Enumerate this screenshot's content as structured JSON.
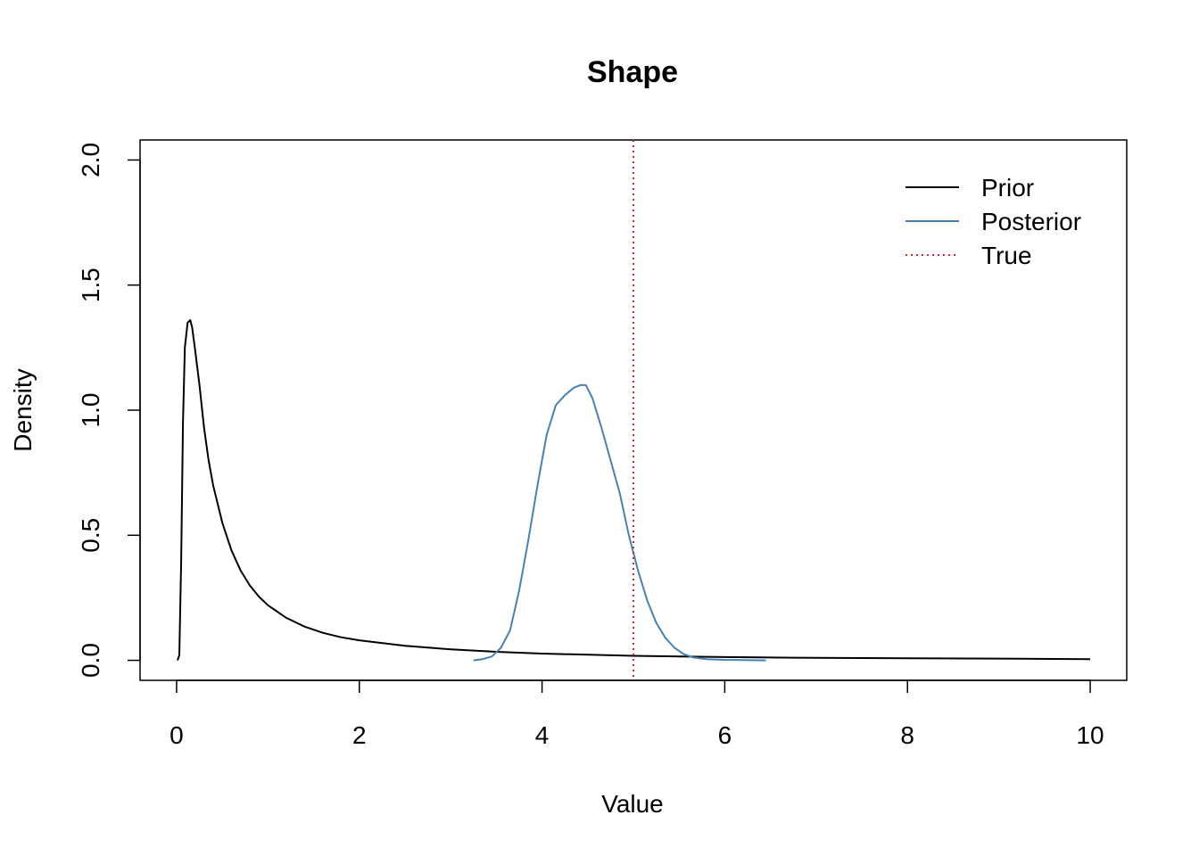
{
  "chart_data": {
    "type": "line",
    "title": "Shape",
    "xlabel": "Value",
    "ylabel": "Density",
    "xlim": [
      -0.4,
      10.4
    ],
    "ylim": [
      -0.08,
      2.08
    ],
    "xticks": [
      0,
      2,
      4,
      6,
      8,
      10
    ],
    "xtick_labels": [
      "0",
      "2",
      "4",
      "6",
      "8",
      "10"
    ],
    "yticks": [
      0,
      0.5,
      1,
      1.5,
      2
    ],
    "ytick_labels": [
      "0.0",
      "0.5",
      "1.0",
      "1.5",
      "2.0"
    ],
    "grid": false,
    "legend_position": "top-right",
    "legend": [
      {
        "label": "Prior",
        "color": "#000000",
        "style": "solid"
      },
      {
        "label": "Posterior",
        "color": "#4682B4",
        "style": "solid"
      },
      {
        "label": "True",
        "color": "#CD2626",
        "style": "dotted"
      }
    ],
    "series": [
      {
        "name": "Prior",
        "color": "#000000",
        "x": [
          0.01,
          0.03,
          0.05,
          0.07,
          0.09,
          0.12,
          0.15,
          0.17,
          0.2,
          0.25,
          0.3,
          0.35,
          0.4,
          0.5,
          0.6,
          0.7,
          0.8,
          0.9,
          1.0,
          1.2,
          1.4,
          1.6,
          1.8,
          2.0,
          2.5,
          3.0,
          3.5,
          4.0,
          5.0,
          6.0,
          7.0,
          8.0,
          9.0,
          10.0
        ],
        "y": [
          0.0,
          0.02,
          0.4,
          0.95,
          1.25,
          1.35,
          1.36,
          1.33,
          1.25,
          1.1,
          0.93,
          0.8,
          0.7,
          0.55,
          0.44,
          0.36,
          0.3,
          0.255,
          0.22,
          0.17,
          0.135,
          0.11,
          0.092,
          0.08,
          0.058,
          0.044,
          0.034,
          0.027,
          0.018,
          0.013,
          0.01,
          0.008,
          0.007,
          0.005
        ]
      },
      {
        "name": "Posterior",
        "color": "#4682B4",
        "x": [
          3.25,
          3.35,
          3.45,
          3.55,
          3.65,
          3.75,
          3.85,
          3.95,
          4.05,
          4.15,
          4.25,
          4.35,
          4.42,
          4.48,
          4.55,
          4.65,
          4.75,
          4.85,
          4.95,
          5.05,
          5.15,
          5.25,
          5.35,
          5.45,
          5.55,
          5.65,
          5.8,
          6.0,
          6.2,
          6.45
        ],
        "y": [
          0.0,
          0.005,
          0.015,
          0.05,
          0.12,
          0.28,
          0.48,
          0.7,
          0.9,
          1.02,
          1.06,
          1.09,
          1.1,
          1.1,
          1.05,
          0.93,
          0.8,
          0.67,
          0.5,
          0.36,
          0.24,
          0.15,
          0.09,
          0.05,
          0.025,
          0.012,
          0.005,
          0.002,
          0.001,
          0.0
        ]
      },
      {
        "name": "True",
        "color": "#CD2626",
        "vline": 5.0
      }
    ]
  }
}
